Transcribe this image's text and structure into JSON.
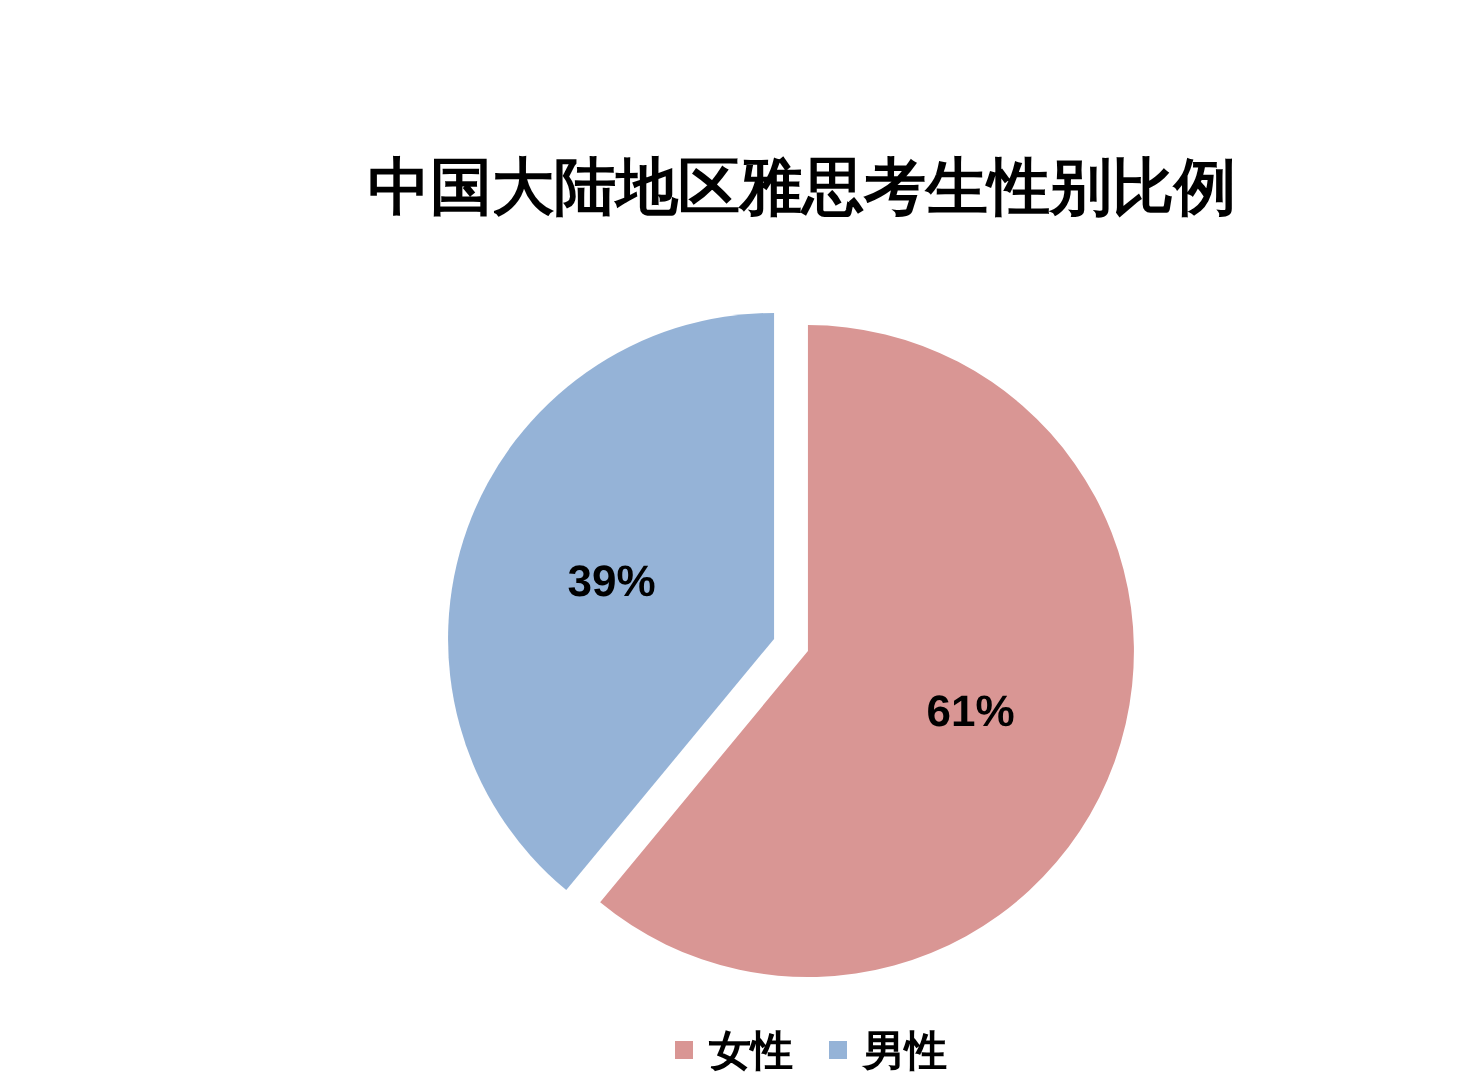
{
  "chart_data": {
    "type": "pie",
    "title": "中国大陆地区雅思考生性别比例",
    "categories": [
      "女性",
      "男性"
    ],
    "values": [
      61,
      39
    ],
    "colors": [
      "#d99694",
      "#95b3d7"
    ],
    "value_labels": [
      "61%",
      "39%"
    ],
    "legend": "bottom"
  }
}
